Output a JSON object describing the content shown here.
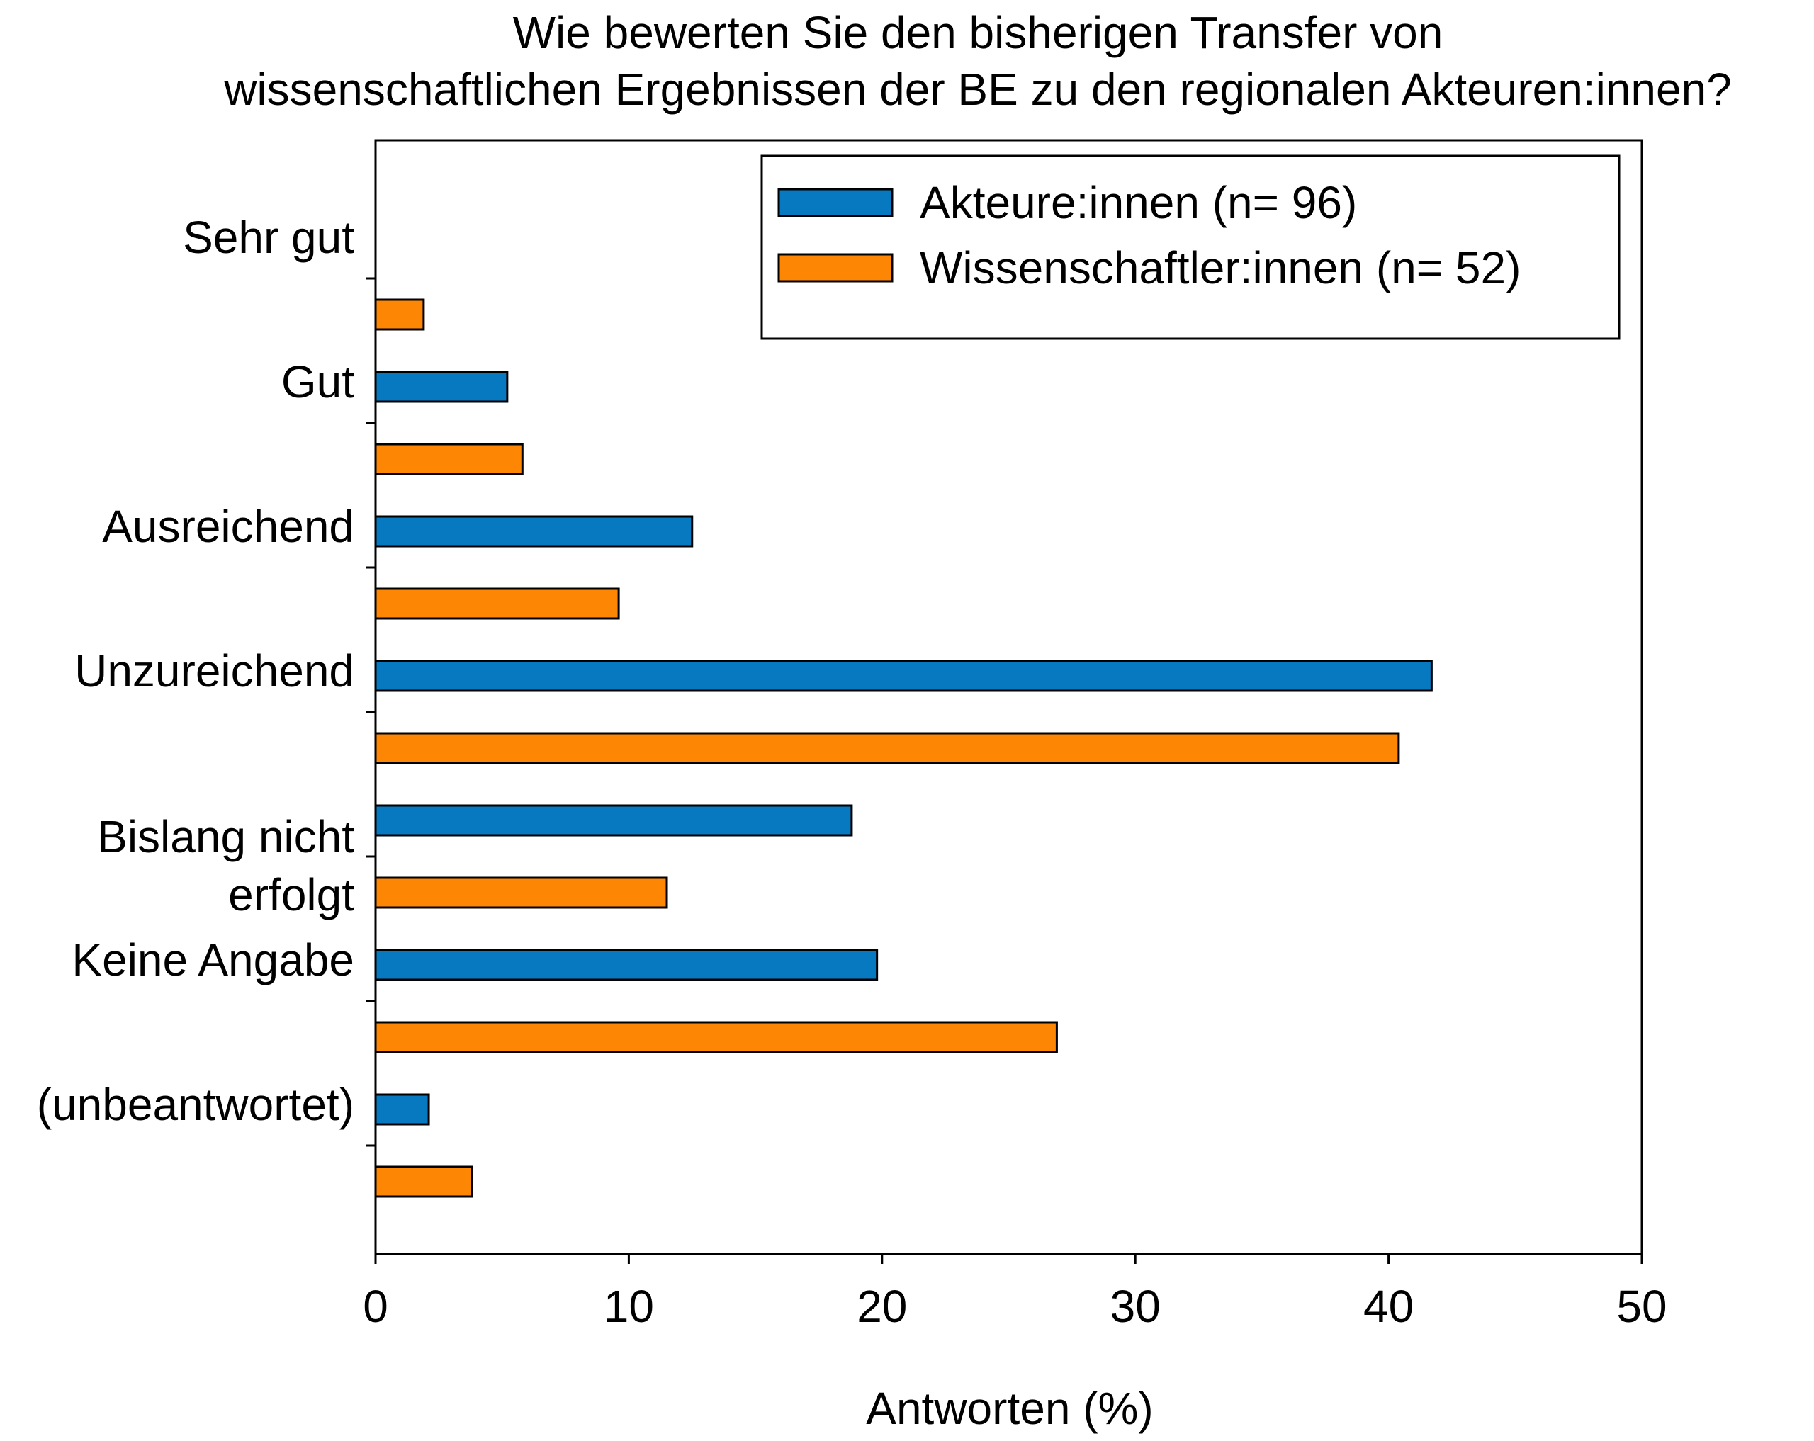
{
  "chart_data": {
    "type": "bar",
    "orientation": "horizontal",
    "title": [
      "Wie bewerten Sie den bisherigen Transfer von",
      "wissenschaftlichen Ergebnissen der BE zu den regionalen Akteuren:innen?"
    ],
    "xlabel": "Antworten (%)",
    "ylabel": "",
    "xlim": [
      0,
      50
    ],
    "xticks": [
      "0",
      "10",
      "20",
      "30",
      "40",
      "50"
    ],
    "categories": [
      [
        "Sehr gut"
      ],
      [
        "Gut"
      ],
      [
        "Ausreichend"
      ],
      [
        "Unzureichend"
      ],
      [
        "Bislang nicht",
        "erfolgt"
      ],
      [
        "Keine Angabe"
      ],
      [
        "(unbeantwortet)"
      ]
    ],
    "series": [
      {
        "name": "Akteure:innen (n= 96)",
        "color": "#0779c0",
        "values": [
          0,
          5.2,
          12.5,
          41.7,
          18.8,
          19.8,
          2.1
        ]
      },
      {
        "name": "Wissenschaftler:innen (n= 52)",
        "color": "#fd8604",
        "values": [
          1.9,
          5.8,
          9.6,
          40.4,
          11.5,
          26.9,
          3.8
        ]
      }
    ],
    "grid": false,
    "legend_position": "top-right"
  }
}
